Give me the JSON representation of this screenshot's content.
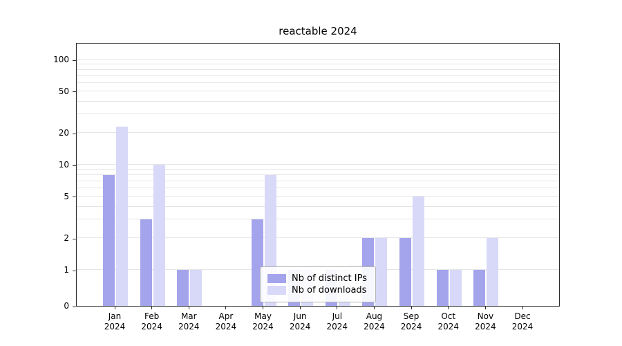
{
  "chart_data": {
    "type": "bar",
    "title": "reactable 2024",
    "categories": [
      "Jan\n2024",
      "Feb\n2024",
      "Mar\n2024",
      "Apr\n2024",
      "May\n2024",
      "Jun\n2024",
      "Jul\n2024",
      "Aug\n2024",
      "Sep\n2024",
      "Oct\n2024",
      "Nov\n2024",
      "Dec\n2024"
    ],
    "series": [
      {
        "name": "Nb of distinct IPs",
        "color": "#a4a4ec",
        "values": [
          8,
          3,
          1,
          0,
          3,
          1,
          1,
          2,
          2,
          1,
          1,
          0
        ]
      },
      {
        "name": "Nb of downloads",
        "color": "#d8d8f8",
        "values": [
          23,
          10,
          1,
          0,
          8,
          1,
          1,
          2,
          5,
          1,
          2,
          0
        ]
      }
    ],
    "yscale": "symlog",
    "yticks": [
      0,
      1,
      2,
      5,
      10,
      20,
      50,
      100
    ],
    "minor_gridlines": [
      3,
      4,
      6,
      7,
      8,
      9,
      30,
      40,
      60,
      70,
      80,
      90
    ],
    "ylim": [
      0,
      140
    ],
    "xlabel": "",
    "ylabel": "",
    "grid": true,
    "legend_position": "lower center"
  }
}
